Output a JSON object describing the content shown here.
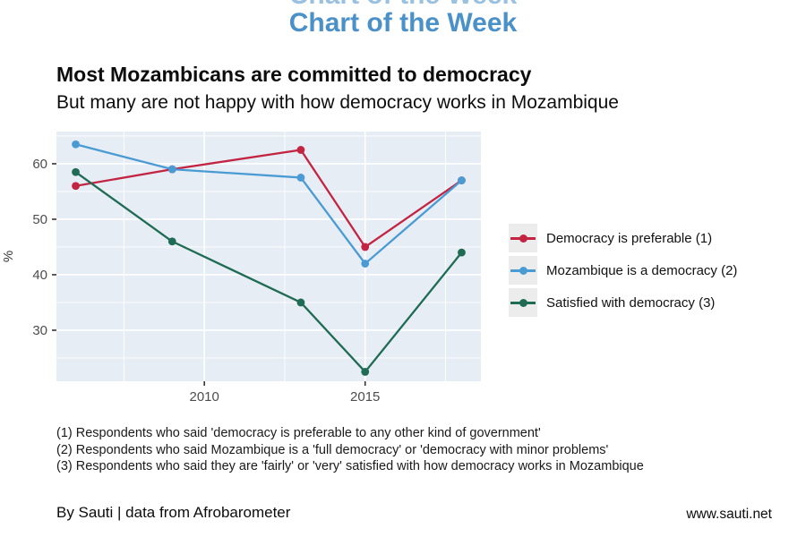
{
  "header": {
    "title": "Chart of the Week",
    "accent_color": "#4a90c9"
  },
  "titles": {
    "title": "Most Mozambicans are committed to democracy",
    "subtitle": "But many are not happy with how democracy works in Mozambique"
  },
  "chart_data": {
    "type": "line",
    "x": [
      2006,
      2009,
      2013,
      2015,
      2018
    ],
    "series": [
      {
        "name": "Democracy is preferable (1)",
        "color": "#c22441",
        "values": [
          56,
          59,
          62.5,
          45,
          57
        ]
      },
      {
        "name": "Mozambique is a democracy (2)",
        "color": "#4a9ad4",
        "values": [
          63.5,
          59,
          57.5,
          42,
          57
        ]
      },
      {
        "name": "Satisfied with democracy (3)",
        "color": "#206b54",
        "values": [
          58.5,
          46,
          35,
          22.5,
          44
        ]
      }
    ],
    "title": "",
    "xlabel": "",
    "ylabel": "%",
    "xlim": [
      2005.4,
      2018.6
    ],
    "ylim": [
      20.8,
      65.8
    ],
    "x_ticks": [
      2010,
      2015
    ],
    "y_ticks": [
      30,
      40,
      50,
      60
    ],
    "x_minor_gridlines": [
      2007.5,
      2012.5,
      2017.5
    ],
    "y_minor_gridlines": [
      25,
      35,
      45,
      55,
      65
    ],
    "grid": "on",
    "panel_bg": "#e6edf5",
    "grid_color": "#ffffff",
    "axis_text_color": "#4d4d4d",
    "tick_mark_color": "#333333",
    "legend_position": "right",
    "legend_key_bg": "#ececec"
  },
  "footnotes": [
    "(1) Respondents who said 'democracy is preferable to any other kind of government'",
    "(2) Respondents who said Mozambique is a 'full democracy' or 'democracy with minor problems'",
    "(3) Respondents who said they are 'fairly' or 'very' satisfied with how democracy works in Mozambique"
  ],
  "footer": {
    "left": "By Sauti | data from Afrobarometer",
    "right": "www.sauti.net"
  }
}
